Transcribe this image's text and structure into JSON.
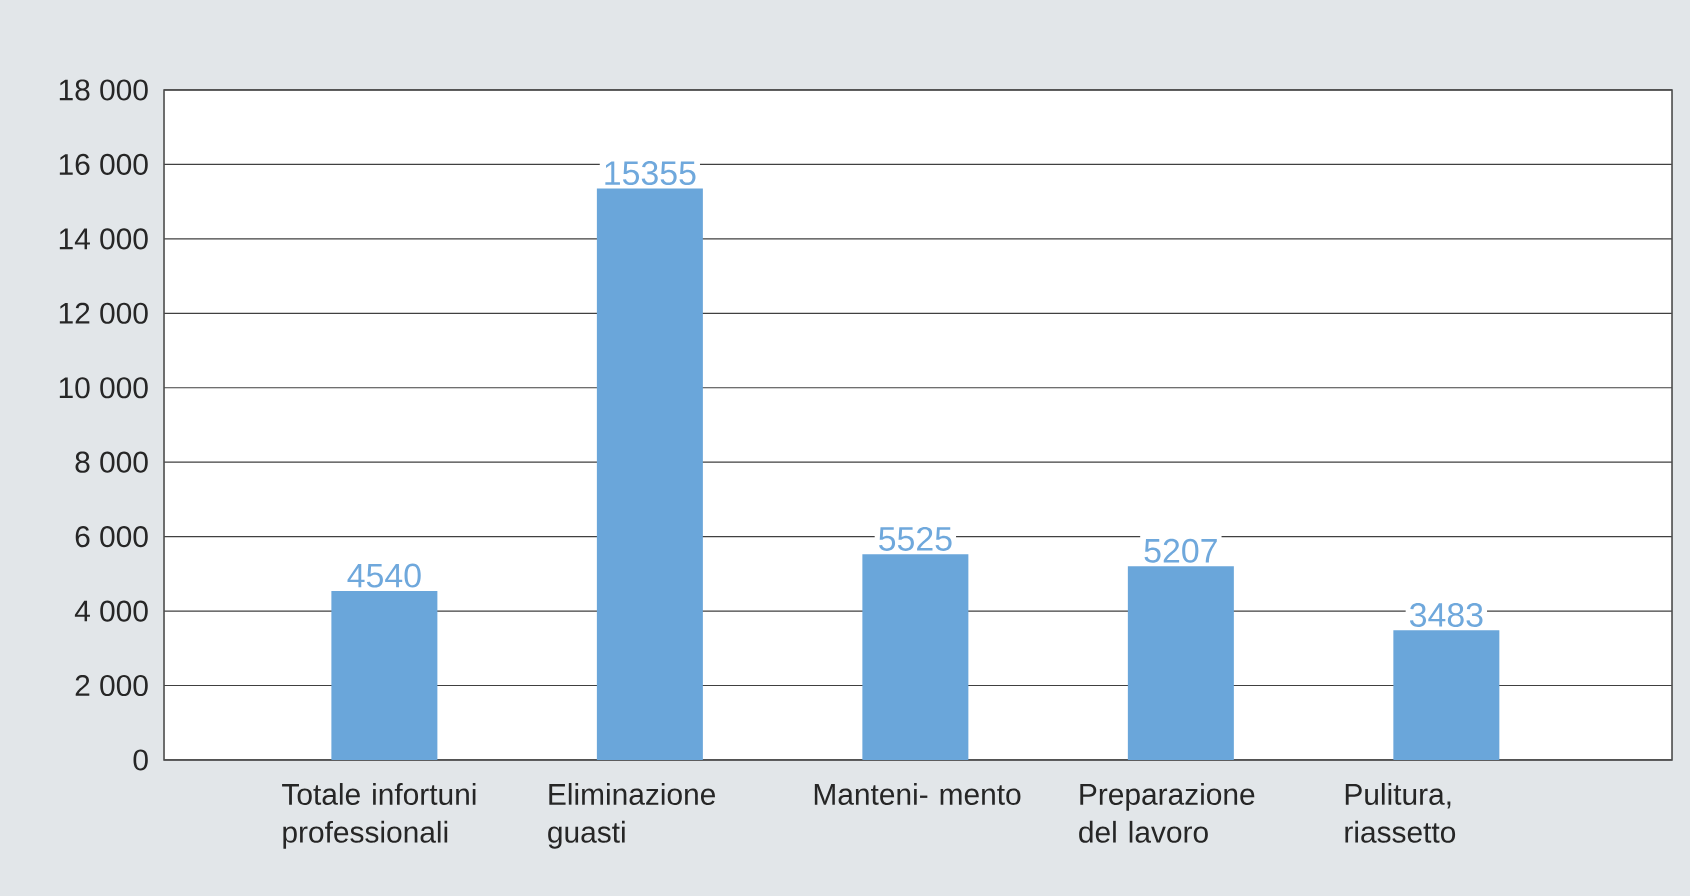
{
  "chart_data": {
    "type": "bar",
    "categories": [
      "Totale infortuni professionali",
      "Eliminazione guasti",
      "Manteni- mento",
      "Preparazione del lavoro",
      "Pulitura, riassetto"
    ],
    "values": [
      4540,
      15355,
      5525,
      5207,
      3483
    ],
    "color": "#6aa6da",
    "data_labels": true,
    "ylim": [
      0,
      18000
    ],
    "yticks": [
      0,
      {
        "value": 2000,
        "label": "2 000"
      },
      {
        "value": 4000,
        "label": "4 000"
      },
      {
        "value": 6000,
        "label": "6 000"
      },
      {
        "value": 8000,
        "label": "8 000"
      },
      {
        "value": 10000,
        "label": "10 000"
      },
      {
        "value": 12000,
        "label": "12 000"
      },
      {
        "value": 14000,
        "label": "14 000"
      },
      {
        "value": 16000,
        "label": "16 000"
      },
      {
        "value": 18000,
        "label": "18 000"
      }
    ],
    "grid": "y"
  }
}
